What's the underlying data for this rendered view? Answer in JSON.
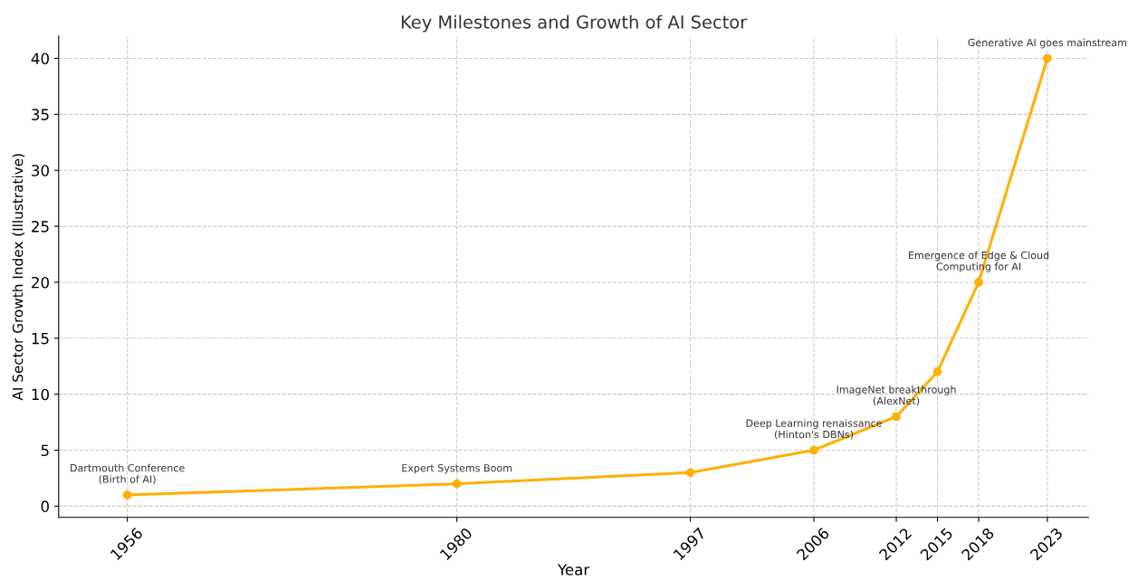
{
  "chart_data": {
    "type": "line",
    "title": "Key Milestones and Growth of AI Sector",
    "xlabel": "Year",
    "ylabel": "AI Sector Growth Index (Illustrative)",
    "x": [
      1956,
      1980,
      1997,
      2006,
      2012,
      2015,
      2018,
      2023
    ],
    "series": [
      {
        "color": "#ffb000",
        "values": [
          1,
          2,
          3,
          5,
          8,
          12,
          20,
          40
        ]
      }
    ],
    "xlim": [
      1951,
      2026
    ],
    "xticks": [
      1956,
      1980,
      1997,
      2006,
      2012,
      2015,
      2018,
      2023
    ],
    "ylim": [
      -1,
      42
    ],
    "yticks": [
      0,
      5,
      10,
      15,
      20,
      25,
      30,
      35,
      40
    ],
    "grid": true,
    "marker": "circle",
    "line_style": "solid",
    "annotations": [
      {
        "text": "Dartmouth Conference\n(Birth of AI)",
        "x": 1956,
        "y": 1
      },
      {
        "text": "Expert Systems Boom",
        "x": 1980,
        "y": 2
      },
      {
        "text": "Deep Learning renaissance\n(Hinton's DBNs)",
        "x": 2006,
        "y": 5
      },
      {
        "text": "ImageNet breakthrough\n(AlexNet)",
        "x": 2012,
        "y": 8
      },
      {
        "text": "Emergence of Edge & Cloud\nComputing for AI",
        "x": 2018,
        "y": 20
      },
      {
        "text": "Generative AI goes mainstream",
        "x": 2023,
        "y": 40
      }
    ]
  }
}
